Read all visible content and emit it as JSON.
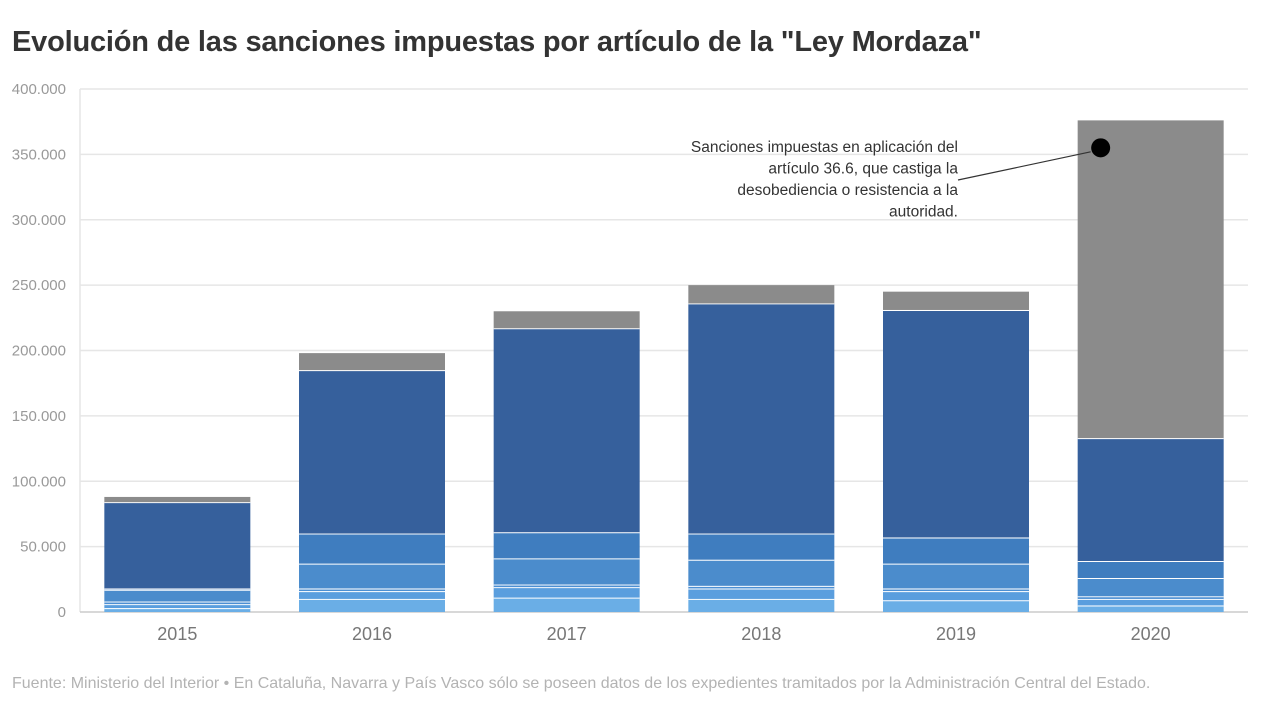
{
  "chart_data": {
    "type": "bar",
    "stacked": true,
    "title": "Evolución de las sanciones impuestas por artículo de la \"Ley Mordaza\"",
    "source": "Fuente: Ministerio del Interior • En Cataluña, Navarra y País Vasco sólo se poseen datos de los expedientes tramitados por la Administración Central del Estado.",
    "categories": [
      "2015",
      "2016",
      "2017",
      "2018",
      "2019",
      "2020"
    ],
    "ylim": [
      0,
      400000
    ],
    "yticks": [
      0,
      50000,
      100000,
      150000,
      200000,
      250000,
      300000,
      350000,
      400000
    ],
    "ytick_labels": [
      "0",
      "50.000",
      "100.000",
      "150.000",
      "200.000",
      "250.000",
      "300.000",
      "350.000",
      "400.000"
    ],
    "grid": true,
    "series": [
      {
        "values": [
          3000,
          10000,
          11000,
          10000,
          9000,
          5000
        ],
        "color": "#6aaee6"
      },
      {
        "values": [
          3000,
          6000,
          8000,
          8000,
          7000,
          5000
        ],
        "color": "#5a9ede"
      },
      {
        "values": [
          2000,
          2000,
          2000,
          2000,
          2000,
          2000
        ],
        "color": "#4c8fd3"
      },
      {
        "values": [
          9000,
          19000,
          20000,
          20000,
          19000,
          14000
        ],
        "color": "#4b8ccc"
      },
      {
        "values": [
          1000,
          23000,
          20000,
          20000,
          20000,
          13000
        ],
        "color": "#3f7dbf"
      },
      {
        "values": [
          66000,
          125000,
          156000,
          176000,
          174000,
          94000
        ],
        "color": "#36609c"
      },
      {
        "values": [
          4000,
          13000,
          13000,
          14000,
          14000,
          243000
        ],
        "color": "#8b8b8b"
      }
    ],
    "annotation": {
      "lines": [
        "Sanciones impuestas en aplicación del",
        "artículo 36.6, que castiga la",
        "desobediencia o resistencia a la",
        "autoridad."
      ],
      "category": "2020",
      "value": 355000
    }
  }
}
